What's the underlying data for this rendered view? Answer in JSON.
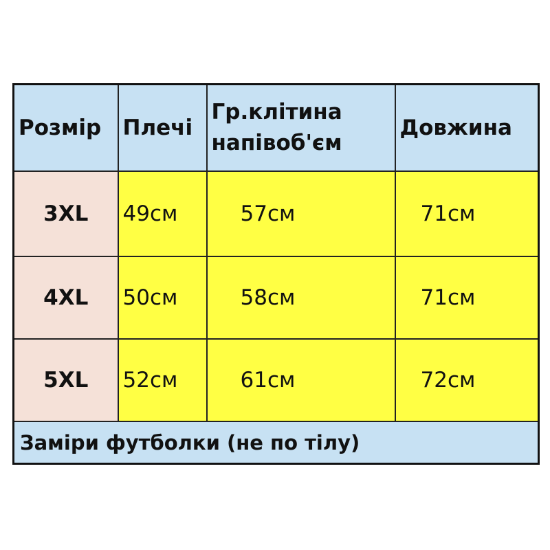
{
  "colors": {
    "header": "#c7e1f3",
    "size_column": "#f5e1d8",
    "values": "#ffff44"
  },
  "headers": [
    "Розмір",
    "Плечі",
    "Гр.клітина напівоб'єм",
    "Довжина"
  ],
  "rows": [
    {
      "size": "3XL",
      "shoulders": "49см",
      "chest": "57см",
      "length": "71см"
    },
    {
      "size": "4XL",
      "shoulders": "50см",
      "chest": "58см",
      "length": "71см"
    },
    {
      "size": "5XL",
      "shoulders": "52см",
      "chest": "61см",
      "length": "72см"
    }
  ],
  "footer": "Заміри футболки (не по тілу)"
}
